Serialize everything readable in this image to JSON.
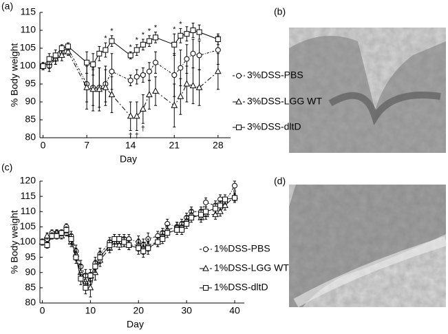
{
  "figure_labels": [
    "(a)",
    "(b)",
    "(c)",
    "(d)"
  ],
  "chart_data": [
    {
      "type": "line",
      "xlabel": "Day",
      "ylabel": "% Body weight",
      "xlim": [
        -0.5,
        30
      ],
      "xticks": [
        0,
        7,
        14,
        21,
        28
      ],
      "ylim": [
        80,
        115
      ],
      "yticks": [
        80,
        85,
        90,
        95,
        100,
        105,
        110,
        115
      ],
      "x": [
        0,
        1,
        2,
        3,
        4,
        7,
        8,
        9,
        10,
        11,
        14,
        15,
        16,
        17,
        18,
        21,
        22,
        23,
        24,
        25,
        28
      ],
      "series": [
        {
          "name": "3%DSS-PBS",
          "color": "#000000",
          "marker": "circle",
          "line_style": "dashdot",
          "values": [
            100,
            100,
            102,
            104,
            105,
            95,
            94,
            94,
            95,
            98.5,
            96,
            97,
            97.5,
            98.5,
            101,
            97.5,
            99.5,
            102,
            103.5,
            103,
            104.5
          ],
          "errors": [
            1,
            1.5,
            1.5,
            1.5,
            1,
            5,
            5,
            5.5,
            5,
            5,
            1.5,
            2,
            2,
            2.5,
            3,
            6,
            5,
            4,
            4,
            4,
            4
          ]
        },
        {
          "name": "3%DSS-LGG WT",
          "color": "#000000",
          "marker": "triangle",
          "line_style": "dashed",
          "values": [
            100,
            101,
            102,
            103,
            104,
            94,
            93.5,
            93.5,
            94,
            92,
            86,
            86,
            88,
            92,
            93,
            89,
            91.5,
            95,
            94.5,
            94,
            98.5
          ],
          "errors": [
            1,
            1.5,
            1.5,
            1.5,
            1,
            6,
            6,
            6,
            5,
            5,
            4,
            4,
            4,
            4,
            4,
            6,
            5,
            5,
            5,
            5,
            5
          ]
        },
        {
          "name": "3%DSS-dltD",
          "color": "#000000",
          "marker": "square",
          "line_style": "solid",
          "values": [
            100,
            102,
            103,
            105,
            105.5,
            101,
            100.5,
            103.5,
            104.5,
            107,
            103,
            104.5,
            106,
            107,
            108,
            106,
            108.5,
            109,
            110,
            109.5,
            107.5
          ],
          "errors": [
            1,
            1.5,
            1.5,
            1,
            1,
            3,
            3,
            2,
            2,
            1.5,
            1,
            1.5,
            1.5,
            1.5,
            1.5,
            3,
            2,
            2,
            2,
            2,
            1.5
          ]
        }
      ],
      "annotations": [
        {
          "text": "*",
          "x": 10
        },
        {
          "text": "*",
          "x": 11
        },
        {
          "text": "*",
          "x": 14
        },
        {
          "text": "*",
          "x": 15
        },
        {
          "text": "*",
          "x": 16
        },
        {
          "text": "*",
          "x": 17
        },
        {
          "text": "*",
          "x": 18
        },
        {
          "text": "*",
          "x": 21
        },
        {
          "text": "*",
          "x": 22
        },
        {
          "text": "†",
          "x": 14
        },
        {
          "text": "†",
          "x": 15
        },
        {
          "text": "†",
          "x": 16
        }
      ]
    },
    {
      "type": "line",
      "xlabel": "Day",
      "ylabel": "% Body weight",
      "xlim": [
        -0.5,
        42
      ],
      "xticks": [
        0,
        10,
        20,
        30,
        40
      ],
      "ylim": [
        80,
        120
      ],
      "yticks": [
        80,
        85,
        90,
        95,
        100,
        105,
        110,
        115,
        120
      ],
      "x": [
        0,
        1,
        2,
        3,
        4,
        5,
        6,
        7,
        8,
        9,
        10,
        11,
        12,
        14,
        15,
        16,
        17,
        18,
        20,
        21,
        22,
        24,
        25,
        26,
        28,
        29,
        30,
        31,
        33,
        34,
        36,
        37,
        38,
        40
      ],
      "series": [
        {
          "name": "1%DSS-PBS",
          "color": "#000000",
          "marker": "circle",
          "line_style": "dashdot",
          "values": [
            100,
            101,
            103,
            103,
            103,
            105,
            102,
            97,
            92,
            89,
            88,
            93,
            96,
            100,
            101,
            100,
            101,
            101,
            100,
            99,
            101,
            102,
            103,
            106,
            105,
            106,
            108,
            110,
            110,
            113,
            112,
            114,
            113,
            118.5
          ],
          "errors": [
            1,
            1,
            1,
            1,
            1,
            1,
            1.5,
            2,
            2,
            2,
            2,
            2,
            2,
            1.5,
            1.5,
            1.5,
            1.5,
            1.5,
            2,
            2,
            2,
            1.5,
            1.5,
            1.5,
            1.5,
            1.5,
            1.5,
            1.5,
            1.5,
            1.5,
            1.5,
            1.5,
            1.5,
            1.5
          ]
        },
        {
          "name": "1%DSS-LGG WT",
          "color": "#000000",
          "marker": "triangle",
          "line_style": "dashed",
          "values": [
            100,
            102,
            102,
            103,
            102,
            103,
            100,
            96,
            90,
            87,
            85,
            90,
            94,
            98,
            100,
            99,
            100,
            99,
            99,
            98,
            99,
            100,
            102,
            104,
            105,
            105,
            107,
            109,
            108,
            109,
            109,
            110,
            112,
            115
          ],
          "errors": [
            1,
            1,
            1,
            1,
            1,
            1,
            1.5,
            2,
            2.5,
            2.5,
            3,
            2.5,
            2,
            1.5,
            1.5,
            1.5,
            1.5,
            1.5,
            2,
            2,
            2,
            1.5,
            1.5,
            1.5,
            1.5,
            1.5,
            1.5,
            1.5,
            1.5,
            1.5,
            1.5,
            1.5,
            1.5,
            1.5
          ]
        },
        {
          "name": "1%DSS-dltD",
          "color": "#000000",
          "marker": "square",
          "line_style": "solid",
          "values": [
            100,
            99,
            102,
            102,
            103,
            104,
            101,
            95,
            88,
            85,
            89,
            92,
            95,
            99,
            101,
            101,
            100,
            99,
            98,
            97,
            98,
            100,
            101,
            103,
            104,
            104,
            106,
            108,
            109,
            110,
            111,
            112,
            114,
            114.5
          ],
          "errors": [
            1,
            1,
            1,
            1,
            1,
            1,
            1.5,
            2,
            2,
            2,
            2,
            2,
            2,
            1.5,
            1.5,
            1.5,
            1.5,
            1.5,
            2,
            2,
            2,
            1.5,
            1.5,
            1.5,
            1.5,
            1.5,
            1.5,
            1.5,
            1.5,
            1.5,
            1.5,
            1.5,
            1.5,
            1.5
          ]
        }
      ]
    }
  ]
}
